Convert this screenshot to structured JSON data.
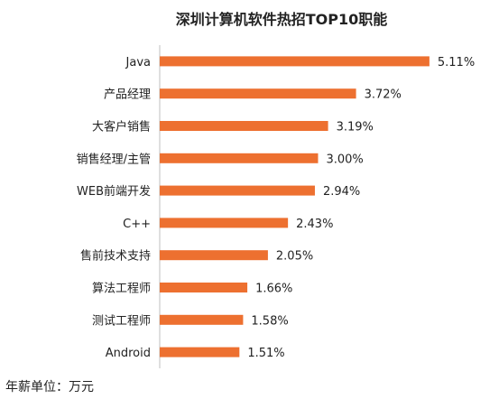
{
  "chart_data": {
    "type": "bar",
    "orientation": "horizontal",
    "title": "深圳计算机软件热招TOP10职能",
    "categories": [
      "Java",
      "产品经理",
      "大客户销售",
      "销售经理/主管",
      "WEB前端开发",
      "C++",
      "售前技术支持",
      "算法工程师",
      "测试工程师",
      "Android"
    ],
    "values": [
      5.11,
      3.72,
      3.19,
      3.0,
      2.94,
      2.43,
      2.05,
      1.66,
      1.58,
      1.51
    ],
    "value_labels": [
      "5.11%",
      "3.72%",
      "3.19%",
      "3.00%",
      "2.94%",
      "2.43%",
      "2.05%",
      "1.66%",
      "1.58%",
      "1.51%"
    ],
    "xlim": [
      0,
      5.3
    ],
    "grid": false,
    "bar_color": "#ED7030",
    "axis_color": "#BFBFBF"
  },
  "footnote": "年薪单位：万元"
}
